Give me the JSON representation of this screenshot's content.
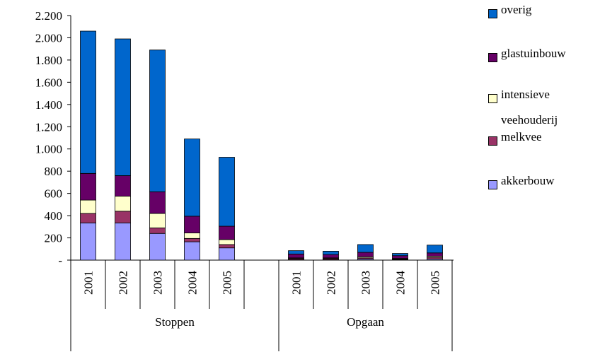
{
  "chart_data": {
    "type": "stacked_bar",
    "groups": [
      {
        "name": "Stoppen",
        "categories": [
          "2001",
          "2002",
          "2003",
          "2004",
          "2005"
        ]
      },
      {
        "name": "Opgaan",
        "categories": [
          "2001",
          "2002",
          "2003",
          "2004",
          "2005"
        ]
      }
    ],
    "series": [
      {
        "name": "akkerbouw",
        "color": "#9999ff",
        "values": [
          335,
          335,
          240,
          165,
          110,
          5,
          5,
          10,
          5,
          10
        ]
      },
      {
        "name": "melkvee",
        "color": "#993366",
        "values": [
          85,
          105,
          50,
          30,
          30,
          10,
          10,
          10,
          5,
          15
        ]
      },
      {
        "name": "intensieve veehouderij",
        "color": "#ffffcc",
        "values": [
          120,
          135,
          130,
          50,
          45,
          5,
          5,
          10,
          5,
          10
        ]
      },
      {
        "name": "glastuinbouw",
        "color": "#660066",
        "values": [
          240,
          185,
          195,
          150,
          120,
          35,
          30,
          40,
          25,
          30
        ]
      },
      {
        "name": "overig",
        "color": "#0066cc",
        "values": [
          1280,
          1230,
          1275,
          695,
          620,
          30,
          30,
          70,
          20,
          70
        ]
      }
    ],
    "ylim": [
      0,
      2200
    ],
    "yticks": [
      {
        "value": 0,
        "label": "-"
      },
      200,
      400,
      600,
      800,
      {
        "value": 1000,
        "label": "1.000"
      },
      {
        "value": 1200,
        "label": "1.200"
      },
      {
        "value": 1400,
        "label": "1.400"
      },
      {
        "value": 1600,
        "label": "1.600"
      },
      {
        "value": 1800,
        "label": "1.800"
      },
      {
        "value": 2000,
        "label": "2.000"
      },
      {
        "value": 2200,
        "label": "2.200"
      }
    ]
  }
}
